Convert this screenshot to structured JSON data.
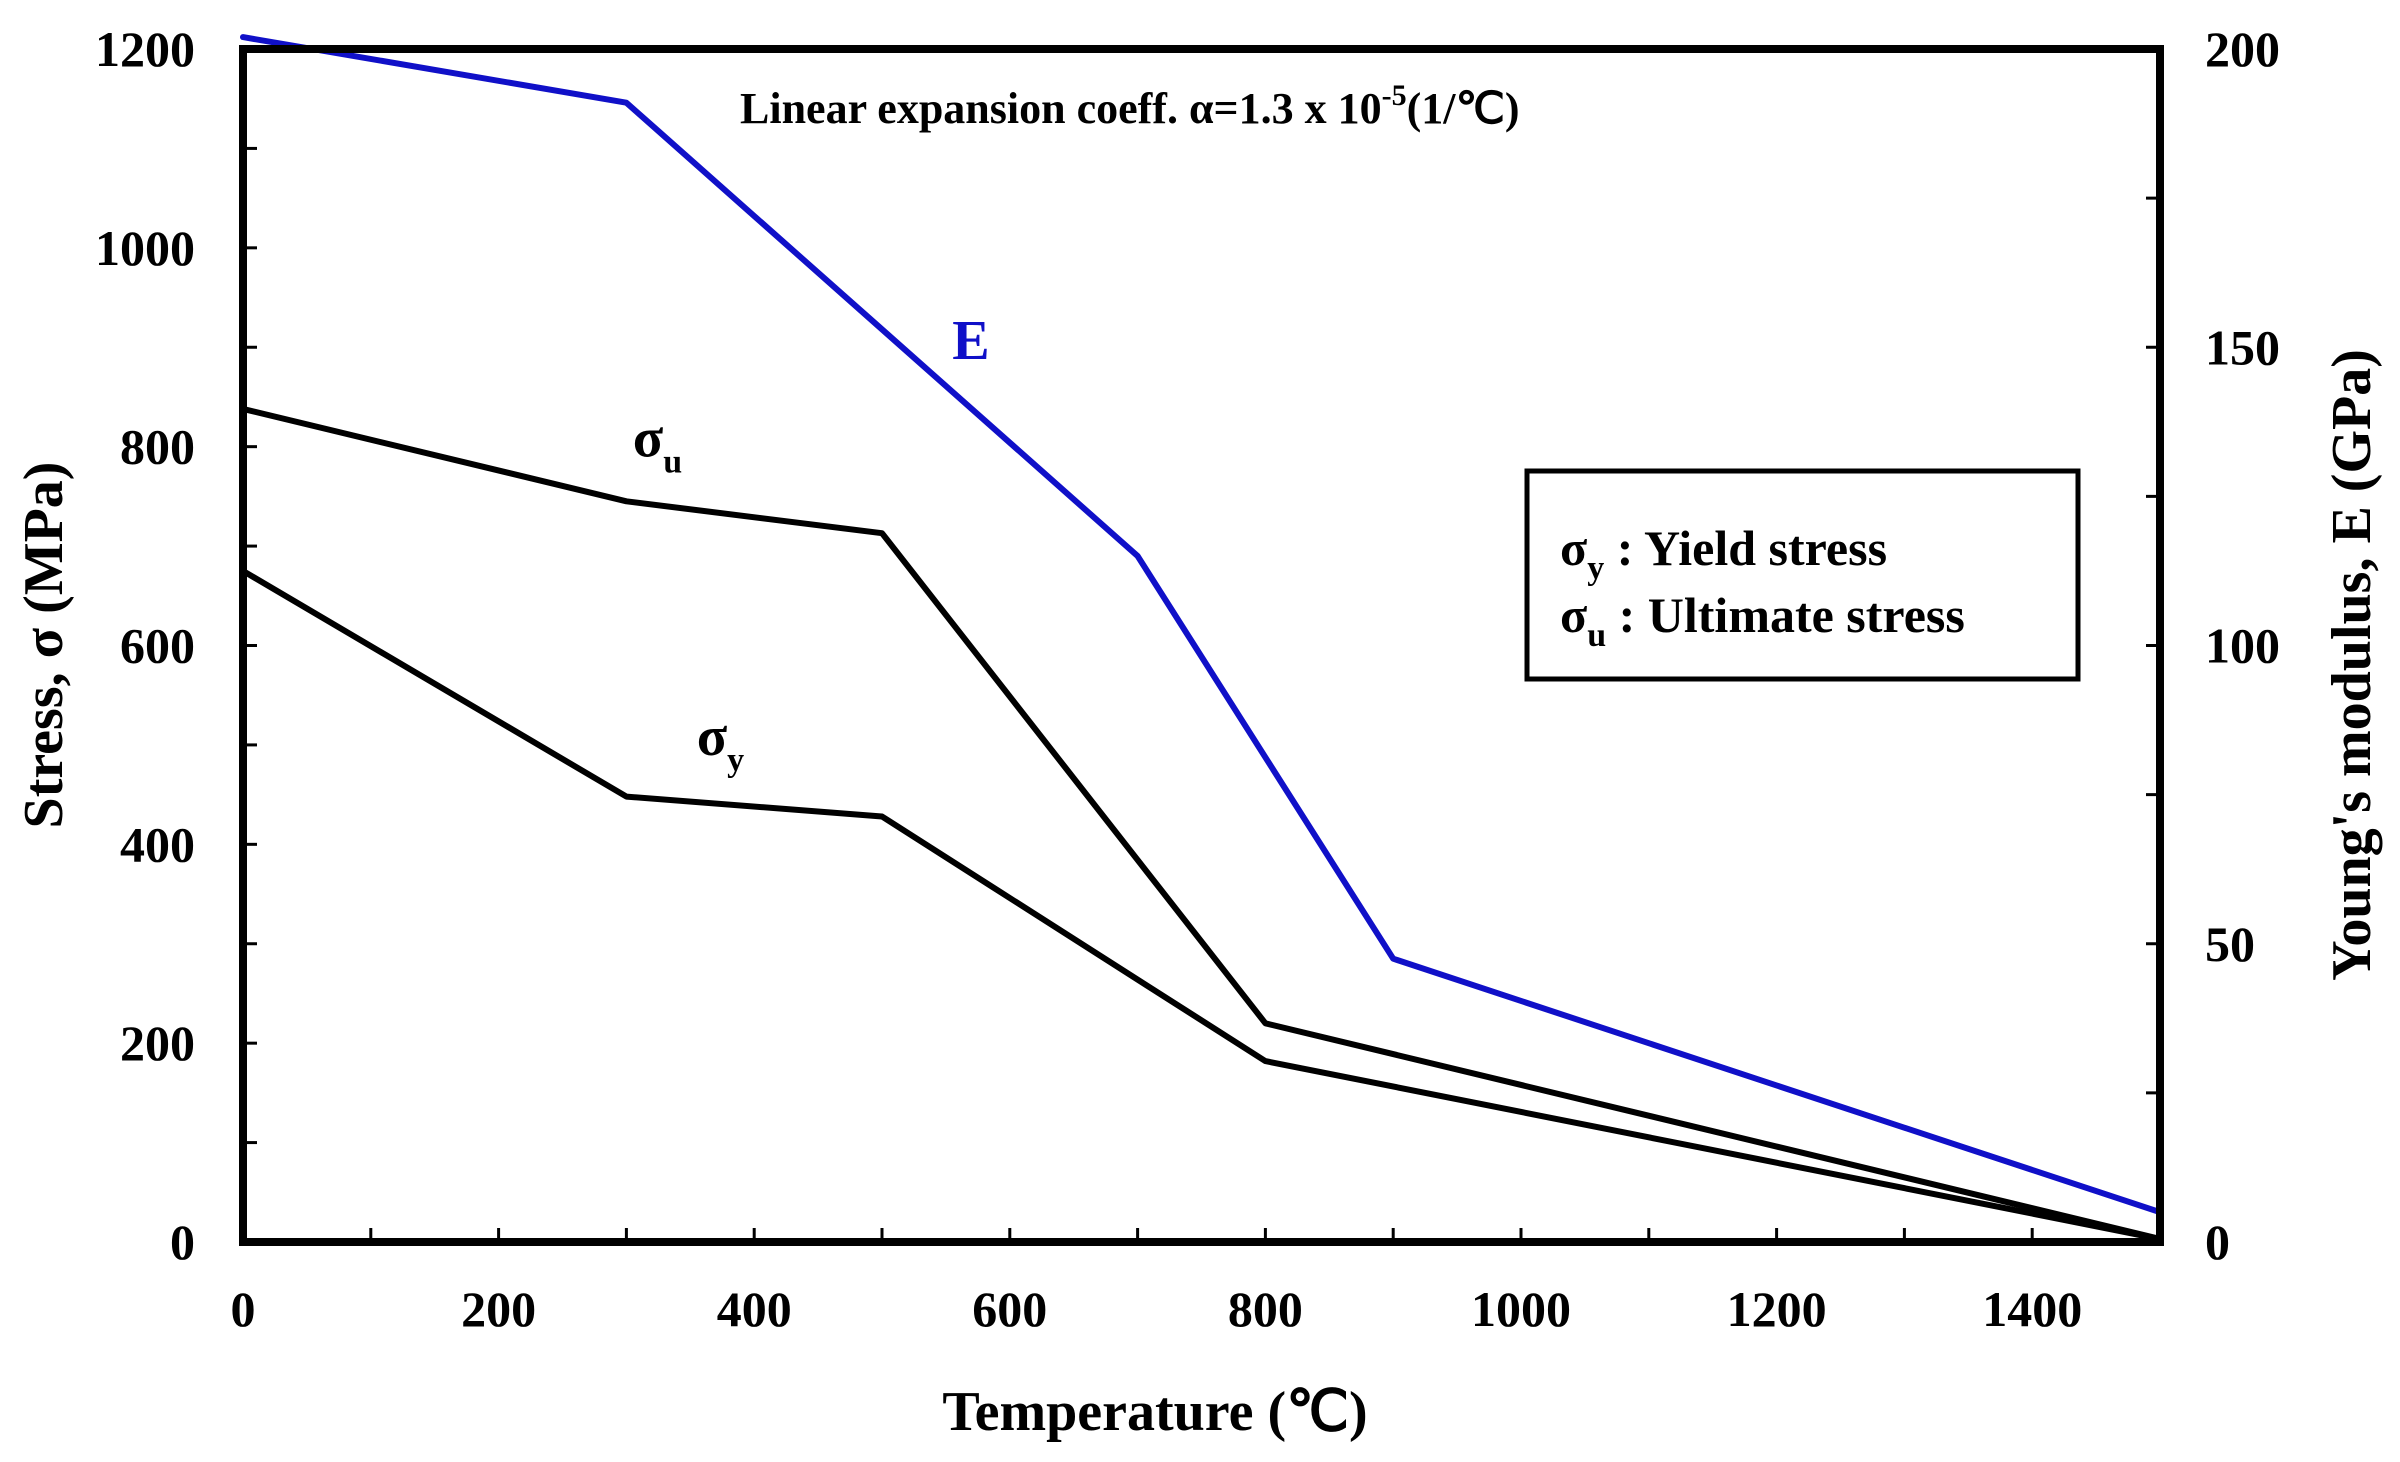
{
  "chart_data": {
    "type": "line",
    "title": "",
    "xlabel": "Temperature (℃)",
    "ylabel": "Stress, σ (MPa)",
    "y2label": "Young's modulus, E (GPa)",
    "xlim": [
      0,
      1500
    ],
    "ylim": [
      0,
      1200
    ],
    "y2lim": [
      0,
      200
    ],
    "x_ticks": [
      0,
      200,
      400,
      600,
      800,
      1000,
      1200,
      1400
    ],
    "y_ticks": [
      0,
      200,
      400,
      600,
      800,
      1000,
      1200
    ],
    "y2_ticks": [
      0,
      50,
      100,
      150,
      200
    ],
    "grid": false,
    "annotation": {
      "prefix": "Linear expansion coeff. α=1.3 x 10",
      "exponent": "-5",
      "suffix": "(1/℃)"
    },
    "series": [
      {
        "id": "E",
        "name": "E",
        "axis": "right",
        "color": "#1010c8",
        "label_main": "E",
        "label_sub": "",
        "label_at": [
          555,
          148
        ],
        "points": [
          [
            0,
            202
          ],
          [
            300,
            191
          ],
          [
            700,
            115
          ],
          [
            900,
            47.5
          ],
          [
            1500,
            5
          ]
        ]
      },
      {
        "id": "sigma_u",
        "name": "σu",
        "axis": "left",
        "color": "#000000",
        "label_main": "σ",
        "label_sub": "u",
        "label_at": [
          305,
          790
        ],
        "points": [
          [
            0,
            838
          ],
          [
            300,
            745
          ],
          [
            500,
            713
          ],
          [
            800,
            220
          ],
          [
            1500,
            3
          ]
        ]
      },
      {
        "id": "sigma_y",
        "name": "σy",
        "axis": "left",
        "color": "#000000",
        "label_main": "σ",
        "label_sub": "y",
        "label_at": [
          355,
          490
        ],
        "points": [
          [
            0,
            675
          ],
          [
            300,
            448
          ],
          [
            500,
            428
          ],
          [
            800,
            182
          ],
          [
            1500,
            3
          ]
        ]
      }
    ],
    "legend": {
      "position": "right",
      "entries": [
        {
          "symbol": "σ",
          "sub": "y",
          "text": " : Yield stress"
        },
        {
          "symbol": "σ",
          "sub": "u",
          "text": " : Ultimate stress"
        }
      ]
    }
  }
}
